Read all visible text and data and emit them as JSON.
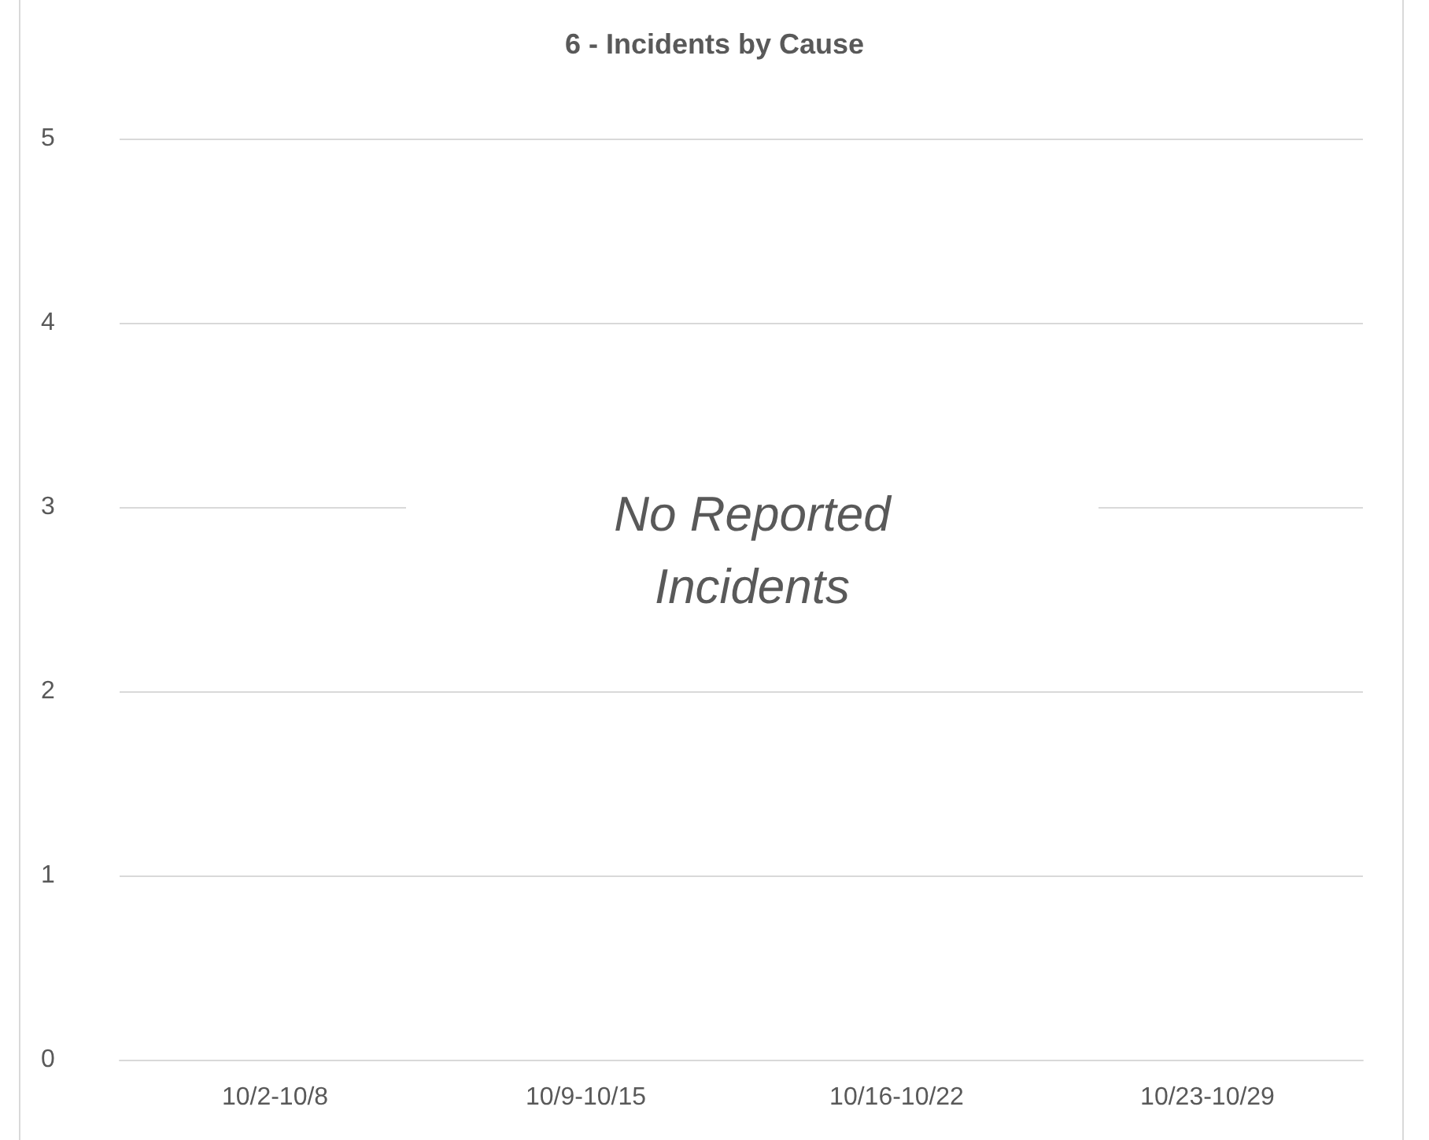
{
  "chart_data": {
    "type": "bar",
    "title": "6 - Incidents by Cause",
    "categories": [
      "10/2-10/8",
      "10/9-10/15",
      "10/16-10/22",
      "10/23-10/29"
    ],
    "values": [
      0,
      0,
      0,
      0
    ],
    "ylim": [
      0,
      5
    ],
    "yticks": [
      0,
      1,
      2,
      3,
      4,
      5
    ],
    "grid": "y",
    "annotations": [
      "No Reported Incidents"
    ]
  }
}
